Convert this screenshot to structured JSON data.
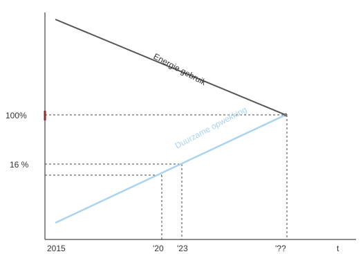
{
  "chart_data": {
    "type": "line",
    "xlabel": "t",
    "ylabel": "",
    "x_ticks": [
      "2015",
      "'20",
      "'23",
      "'??"
    ],
    "y_ticks": [
      "100%",
      "16 %"
    ],
    "grid": false,
    "series": [
      {
        "name": "Energie gebruik",
        "color": "#555555",
        "points": [
          {
            "x": "2015",
            "y": ""
          },
          {
            "x": "'??",
            "y": "100%"
          }
        ]
      },
      {
        "name": "Duurzame opwekking",
        "color": "#a9d3ef",
        "points": [
          {
            "x": "2015",
            "y": ""
          },
          {
            "x": "'??",
            "y": "100%"
          }
        ]
      }
    ],
    "reference_lines": [
      {
        "label": "100%",
        "x": "'??"
      },
      {
        "label": "16 %",
        "x": "'23"
      },
      {
        "label": "",
        "x": "'20"
      }
    ]
  }
}
